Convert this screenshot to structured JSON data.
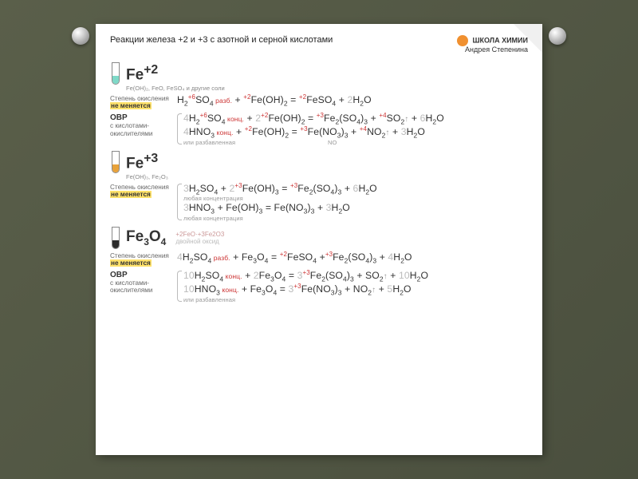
{
  "header": {
    "title": "Реакции железа +2 и +3 с азотной и серной кислотами",
    "brand_line1": "ШКОЛА ХИМИИ",
    "brand_line2": "Андрея Степенина"
  },
  "colors": {
    "tube_fe2": "#7fd9c8",
    "tube_fe3": "#e8a23a",
    "tube_fe3o4": "#2b2b2b",
    "accent_red": "#cc3333",
    "highlight": "#ffe26b",
    "coef_gray": "#bbbbbb",
    "oxide_note": "#c99",
    "bg_card": "#ffffff"
  },
  "sections": [
    {
      "id": "fe2",
      "label_html": "Fe<sup>+2</sup>",
      "tube_color_key": "tube_fe2",
      "subtitle": "Fe(OH)₂, FeO, FeSO₄ и другие соли",
      "groups": [
        {
          "side": {
            "line1": "Степень окисления",
            "line2_hl": "не меняется"
          },
          "bracket": false,
          "eqs": [
            {
              "html": "H<span class='s'>2</span><span class='ox'>+6</span>SO<span class='s'>4</span><span class='tag'> разб.</span> + <span class='ox'>+2</span>Fe(OH)<span class='s'>2</span> = <span class='ox'>+2</span>FeSO<span class='s'>4</span> + <span class='coef'>2</span>H<span class='s'>2</span>O"
            }
          ]
        },
        {
          "side": {
            "title": "ОВР",
            "sub": "с кислотами-окислителями"
          },
          "bracket": true,
          "eqs": [
            {
              "html": "<span class='coef'>4</span>H<span class='s'>2</span><span class='ox'>+6</span>SO<span class='s'>4</span><span class='tag'> конц.</span> + <span class='coef'>2</span><span class='ox'>+2</span>Fe(OH)<span class='s'>2</span> = <span class='ox'>+3</span>Fe<span class='s'>2</span>(SO<span class='s'>4</span>)<span class='s'>3</span> + <span class='ox'>+4</span>SO<span class='s'>2</span><span class='arr'>↑</span> + <span class='coef'>6</span>H<span class='s'>2</span>O"
            },
            {
              "html": "<span class='coef'>4</span>HNO<span class='s'>3</span><span class='tag'> конц.</span> + <span class='ox'>+2</span>Fe(OH)<span class='s'>2</span> = <span class='ox'>+3</span>Fe(NO<span class='s'>3</span>)<span class='s'>3</span> + <span class='ox'>+4</span>NO<span class='s'>2</span><span class='arr'>↑</span> + <span class='coef'>3</span>H<span class='s'>2</span>O<span class='note'>или разбавленная&nbsp;&nbsp;&nbsp;&nbsp;&nbsp;&nbsp;&nbsp;&nbsp;&nbsp;&nbsp;&nbsp;&nbsp;&nbsp;&nbsp;&nbsp;&nbsp;&nbsp;&nbsp;&nbsp;&nbsp;&nbsp;&nbsp;&nbsp;&nbsp;&nbsp;&nbsp;&nbsp;&nbsp;&nbsp;&nbsp;&nbsp;&nbsp;&nbsp;&nbsp;&nbsp;&nbsp;&nbsp;&nbsp;&nbsp;&nbsp;&nbsp;&nbsp;&nbsp;&nbsp;&nbsp;&nbsp;&nbsp;&nbsp;&nbsp;&nbsp;&nbsp;&nbsp;&nbsp;NO</span>"
            }
          ]
        }
      ]
    },
    {
      "id": "fe3",
      "label_html": "Fe<sup>+3</sup>",
      "tube_color_key": "tube_fe3",
      "subtitle": "Fe(OH)₃, Fe₂O₃",
      "groups": [
        {
          "side": {
            "line1": "Степень окисления",
            "line2_hl": "не меняется"
          },
          "bracket": true,
          "eqs": [
            {
              "html": "<span class='coef'>3</span>H<span class='s'>2</span>SO<span class='s'>4</span> + <span class='coef'>2</span><span class='ox'>+3</span>Fe(OH)<span class='s'>3</span> = <span class='ox'>+3</span>Fe<span class='s'>2</span>(SO<span class='s'>4</span>)<span class='s'>3</span> + <span class='coef'>6</span>H<span class='s'>2</span>O<span class='note'>любая концентрация</span>"
            },
            {
              "html": "<span class='coef'>3</span>HNO<span class='s'>3</span> + Fe(OH)<span class='s'>3</span> = Fe(NO<span class='s'>3</span>)<span class='s'>3</span> + <span class='coef'>3</span>H<span class='s'>2</span>O<span class='note'>любая концентрация</span>"
            }
          ]
        }
      ]
    },
    {
      "id": "fe3o4",
      "label_html": "Fe<sub style='font-size:12px'>3</sub>O<sub style='font-size:12px'>4</sub>",
      "oxide_note_html": "<span class='ox'>+2</span>FeO·<span class='ox'>+3</span>Fe<span class='s'>2</span>O<span class='s'>3</span><br><span style='color:#bbb'>двойной оксид</span>",
      "tube_color_key": "tube_fe3o4",
      "subtitle": "",
      "groups": [
        {
          "side": {
            "line1": "Степень окисления",
            "line2_hl": "не меняется"
          },
          "bracket": false,
          "eqs": [
            {
              "html": "<span class='coef'>4</span>H<span class='s'>2</span>SO<span class='s'>4</span><span class='tag'> разб.</span> + Fe<span class='s'>3</span>O<span class='s'>4</span> = <span class='ox'>+2</span>FeSO<span class='s'>4</span> +<span class='ox'>+3</span>Fe<span class='s'>2</span>(SO<span class='s'>4</span>)<span class='s'>3</span> + <span class='coef'>4</span>H<span class='s'>2</span>O"
            }
          ]
        },
        {
          "side": {
            "title": "ОВР",
            "sub": "с кислотами-окислителями"
          },
          "bracket": true,
          "eqs": [
            {
              "html": "<span class='coef'>10</span>H<span class='s'>2</span>SO<span class='s'>4</span><span class='tag'> конц.</span> + <span class='coef'>2</span>Fe<span class='s'>3</span>O<span class='s'>4</span> = <span class='coef'>3</span><span class='ox'>+3</span>Fe<span class='s'>2</span>(SO<span class='s'>4</span>)<span class='s'>3</span> + SO<span class='s'>2</span><span class='arr'>↑</span> + <span class='coef'>10</span>H<span class='s'>2</span>O"
            },
            {
              "html": "<span class='coef'>10</span>HNO<span class='s'>3</span><span class='tag'> конц.</span> + Fe<span class='s'>3</span>O<span class='s'>4</span> = <span class='coef'>3</span><span class='ox'>+3</span>Fe(NO<span class='s'>3</span>)<span class='s'>3</span> + NO<span class='s'>2</span><span class='arr'>↑</span> + <span class='coef'>5</span>H<span class='s'>2</span>O<span class='note'>или разбавленная</span>"
            }
          ]
        }
      ]
    }
  ]
}
